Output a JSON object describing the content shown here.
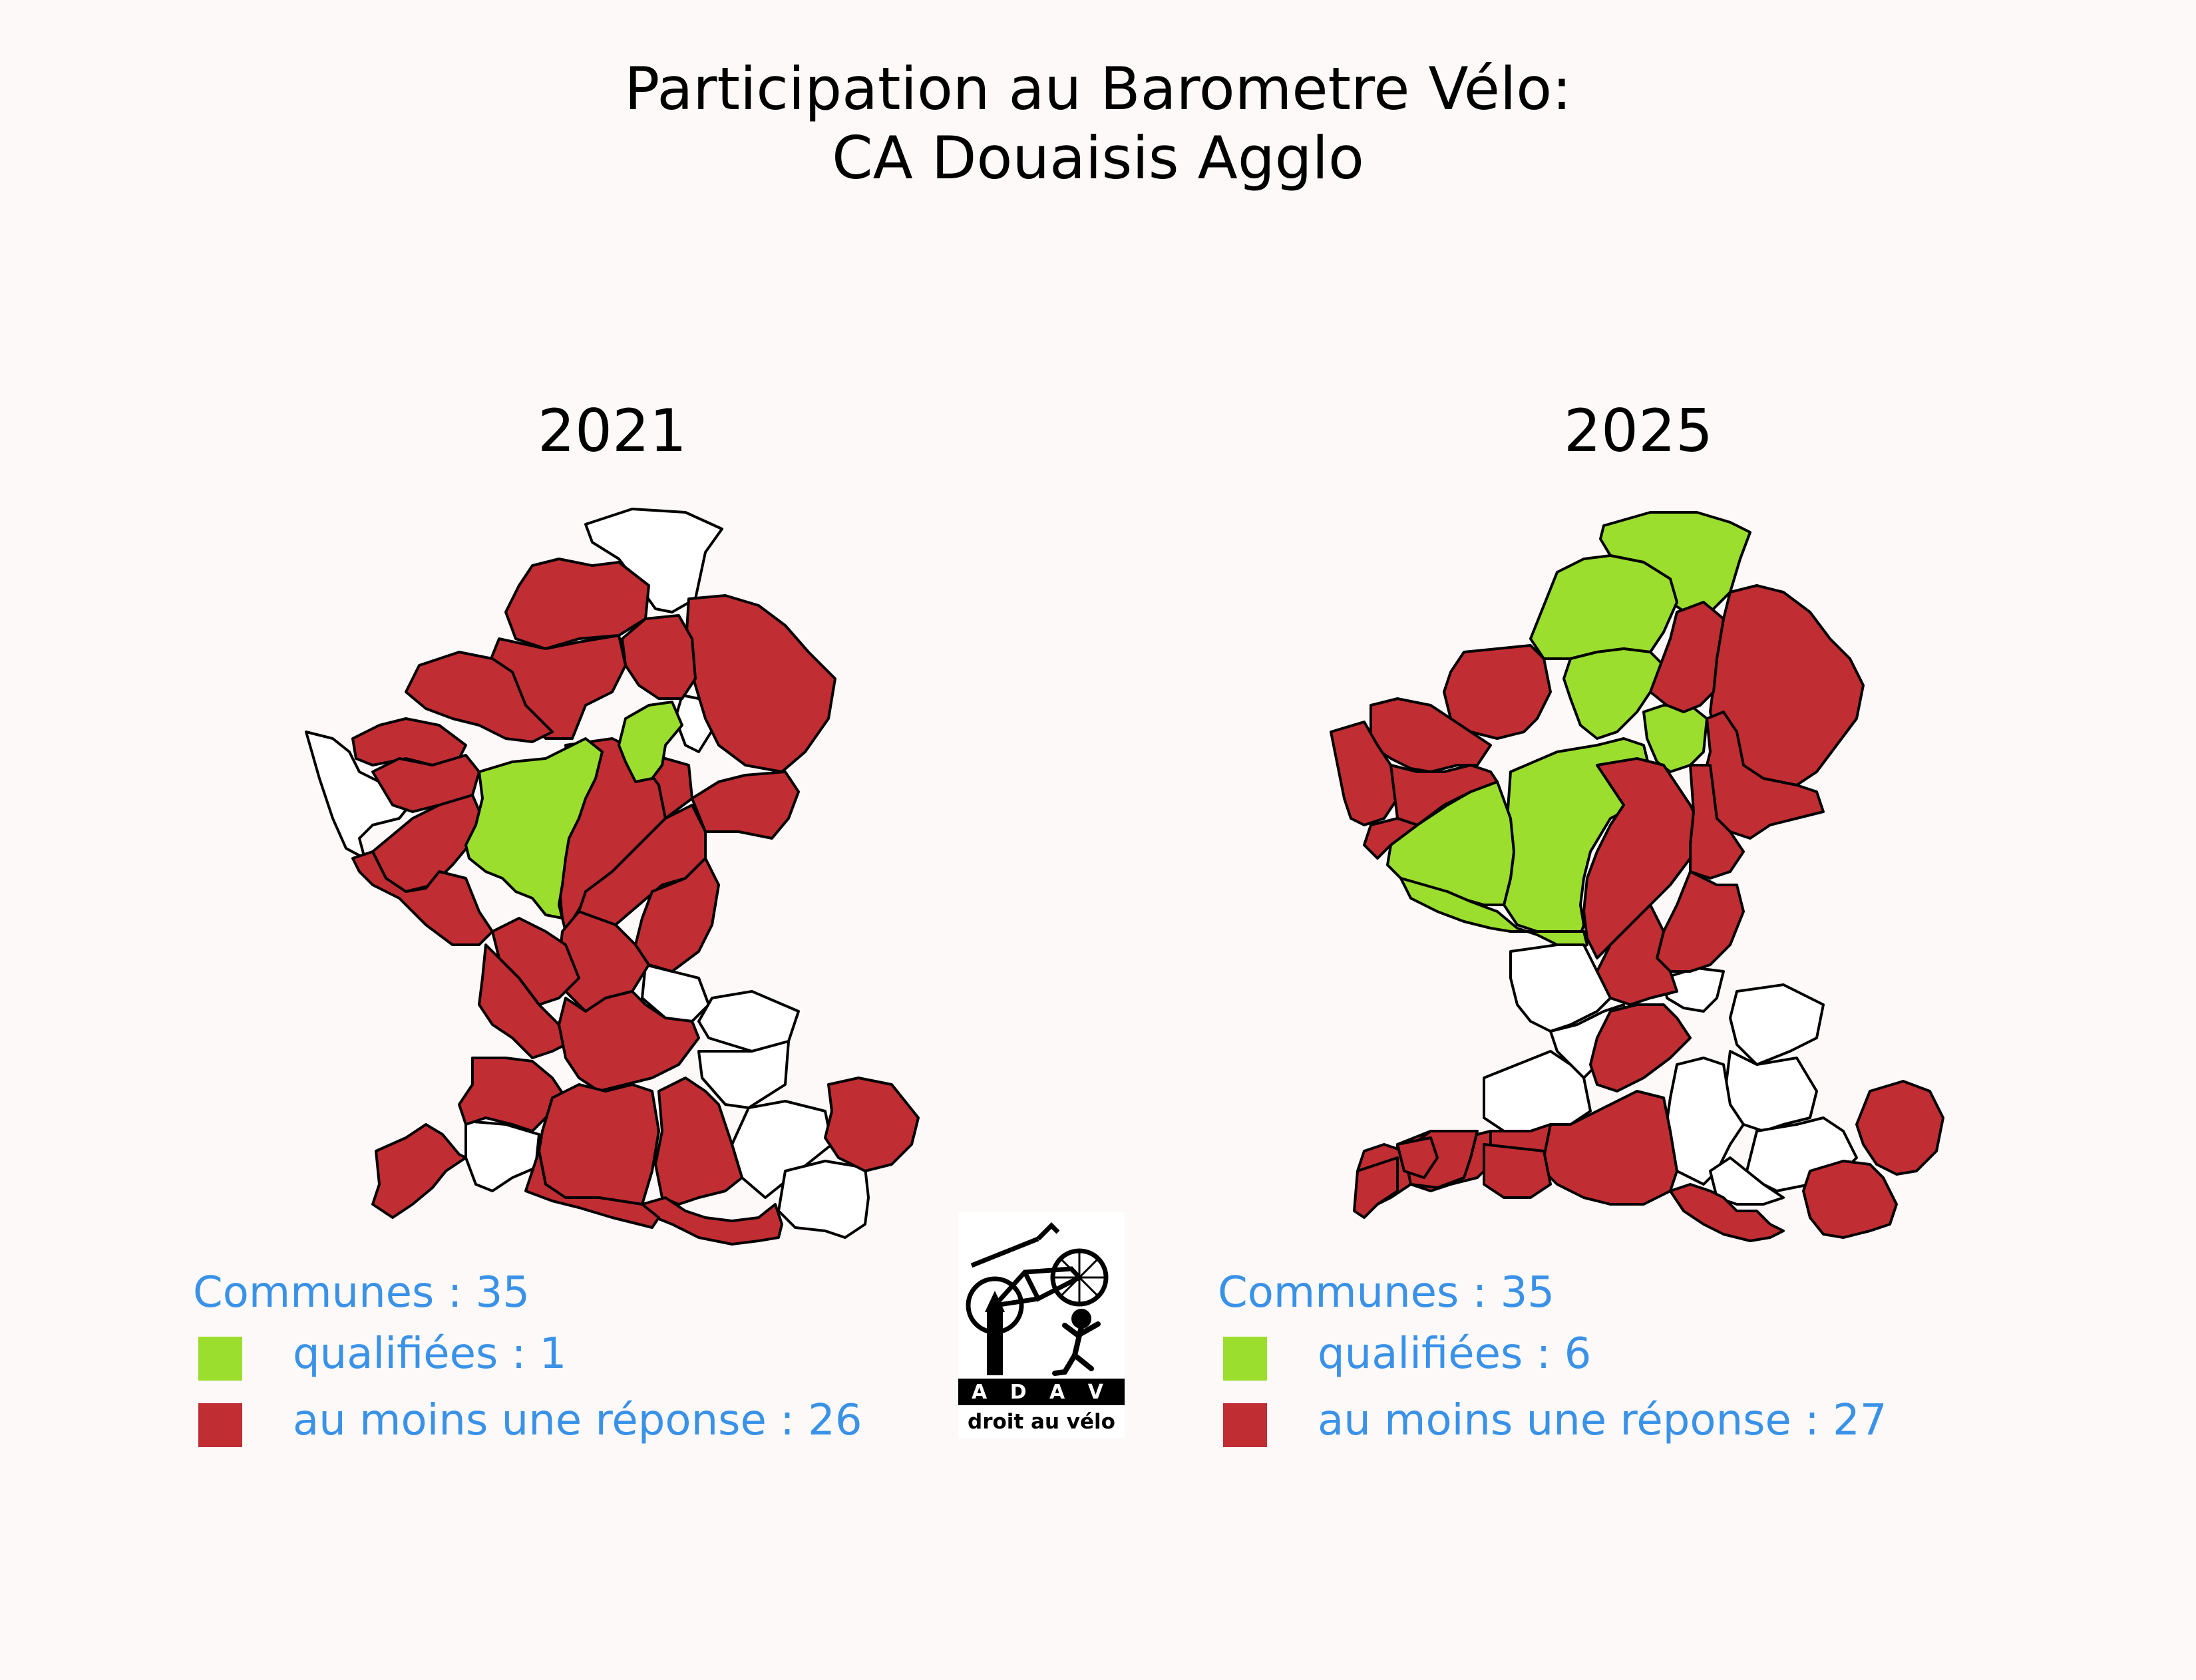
{
  "title": {
    "line1": "Participation au Barometre Vélo:",
    "line2": "CA Douaisis Agglo"
  },
  "maps": [
    {
      "year": "2021",
      "legend": {
        "communes": "Communes : 35",
        "qualified": "qualifiées : 1",
        "answered": "au moins une réponse : 26"
      },
      "counts": {
        "communes": 35,
        "qualified": 1,
        "answered": 26
      }
    },
    {
      "year": "2025",
      "legend": {
        "communes": "Communes : 35",
        "qualified": "qualifiées : 6",
        "answered": "au moins une réponse : 27"
      },
      "counts": {
        "communes": 35,
        "qualified": 6,
        "answered": 27
      }
    }
  ],
  "colors": {
    "qualified": "#9bde2d",
    "answered": "#c02d33",
    "no_response": "#ffffff",
    "legend_text": "#3a92e8",
    "background": "#fcf9f8"
  },
  "logo": {
    "label": "ADAV droit au vélo",
    "top_text": "A D A V",
    "bottom_text": "droit au vélo"
  }
}
